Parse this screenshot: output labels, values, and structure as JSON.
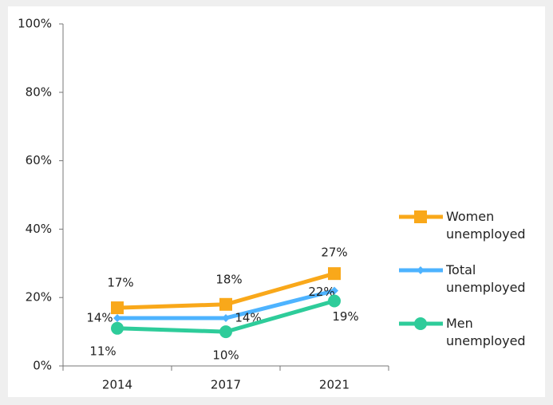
{
  "chart_data": {
    "type": "line",
    "categories": [
      "2014",
      "2017",
      "2021"
    ],
    "series": [
      {
        "name": "Women unemployed",
        "color": "#f9a81a",
        "marker": "square",
        "values": [
          17,
          18,
          27
        ],
        "value_labels": [
          "17%",
          "18%",
          "27%"
        ]
      },
      {
        "name": "Total unemployed",
        "color": "#4db3ff",
        "marker": "diamond",
        "values": [
          14,
          14,
          22
        ],
        "value_labels": [
          "14%",
          "14%",
          "22%"
        ]
      },
      {
        "name": "Men unemployed",
        "color": "#2ecc9a",
        "marker": "circle",
        "values": [
          11,
          10,
          19
        ],
        "value_labels": [
          "11%",
          "10%",
          "19%"
        ]
      }
    ],
    "ylim": [
      0,
      100
    ],
    "yticks": [
      {
        "value": 0,
        "label": "0%"
      },
      {
        "value": 20,
        "label": "20%"
      },
      {
        "value": 40,
        "label": "40%"
      },
      {
        "value": 60,
        "label": "60%"
      },
      {
        "value": 80,
        "label": "80%"
      },
      {
        "value": 100,
        "label": "100%"
      }
    ],
    "grid": false,
    "legend": "right"
  }
}
